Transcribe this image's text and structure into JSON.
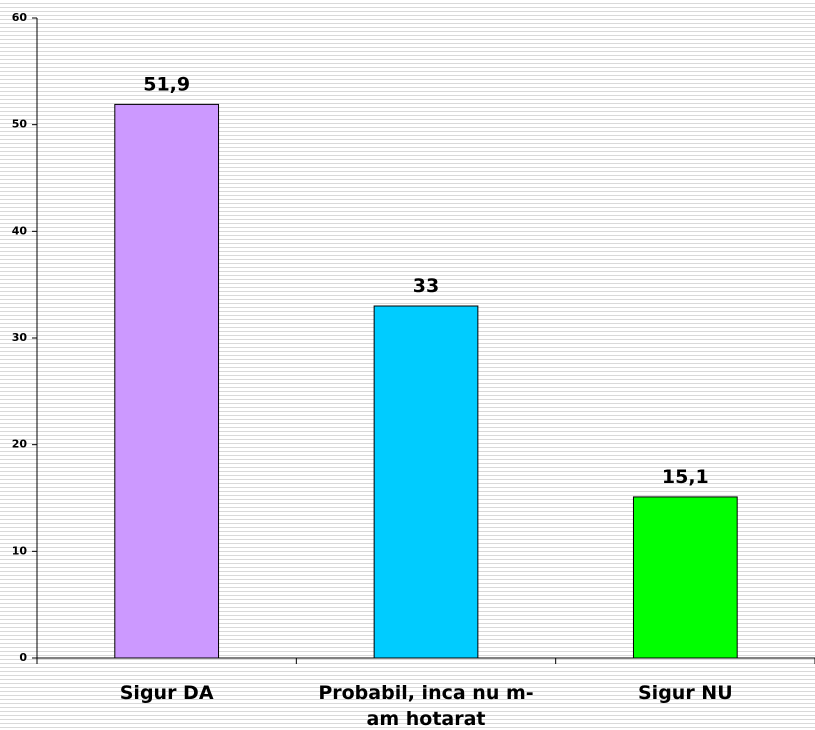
{
  "chart_data": {
    "type": "bar",
    "categories": [
      "Sigur DA",
      "Probabil, inca nu m-am hotarat",
      "Sigur NU"
    ],
    "values": [
      51.9,
      33,
      15.1
    ],
    "value_labels": [
      "51,9",
      "33",
      "15,1"
    ],
    "colors": [
      "#cc99ff",
      "#00ccff",
      "#00ff00"
    ],
    "ylim": [
      0,
      60
    ],
    "yticks": [
      0,
      10,
      20,
      30,
      40,
      50,
      60
    ]
  }
}
